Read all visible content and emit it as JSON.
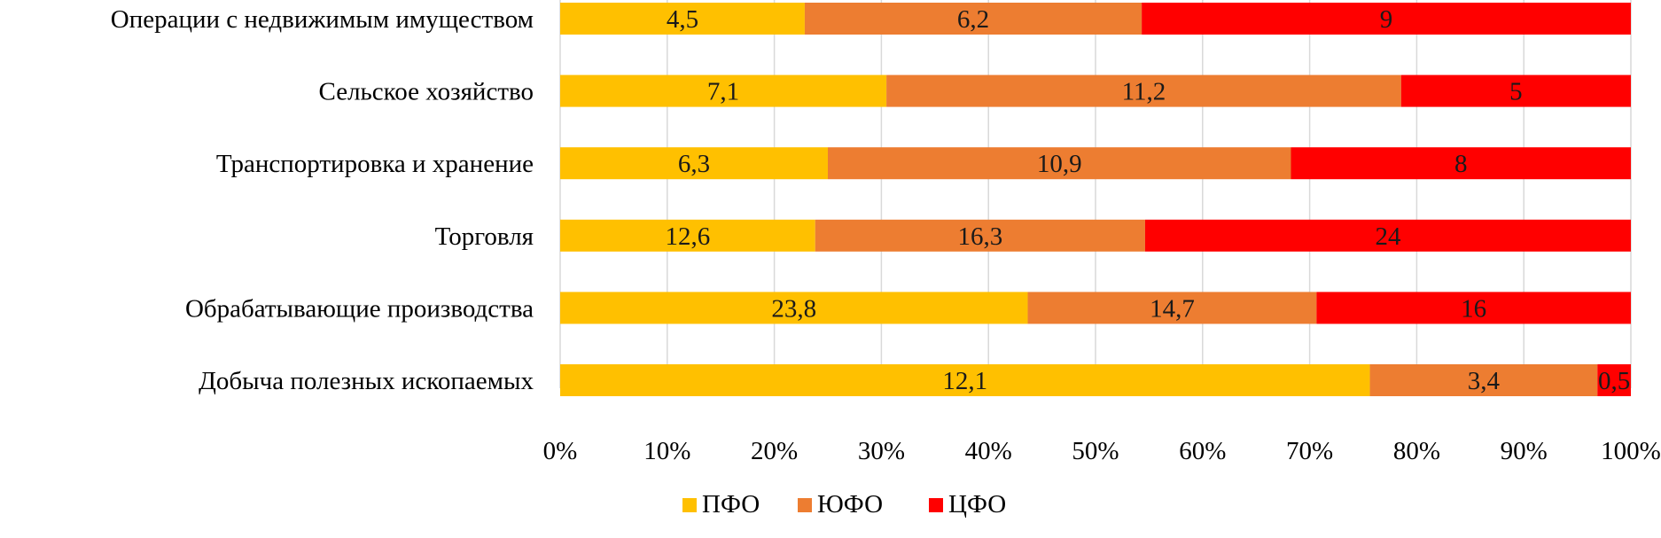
{
  "chart_data": {
    "type": "bar",
    "orientation": "horizontal",
    "stacked": "percent",
    "categories": [
      "Операции с недвижимым имуществом",
      "Сельское хозяйство",
      "Транспортировка и хранение",
      "Торговля",
      "Обрабатывающие производства",
      "Добыча полезных ископаемых"
    ],
    "series": [
      {
        "name": "ПФО",
        "color": "#FFC000",
        "values": [
          4.5,
          7.1,
          6.3,
          12.6,
          23.8,
          12.1
        ],
        "labels": [
          "4,5",
          "7,1",
          "6,3",
          "12,6",
          "23,8",
          "12,1"
        ]
      },
      {
        "name": "ЮФО",
        "color": "#ED7D31",
        "values": [
          6.2,
          11.2,
          10.9,
          16.3,
          14.7,
          3.4
        ],
        "labels": [
          "6,2",
          "11,2",
          "10,9",
          "16,3",
          "14,7",
          "3,4"
        ]
      },
      {
        "name": "ЦФО",
        "color": "#FF0000",
        "values": [
          9,
          5,
          8,
          24,
          16,
          0.5
        ],
        "labels": [
          "9",
          "5",
          "8",
          "24",
          "16",
          "0,5"
        ]
      }
    ],
    "x_ticks": [
      "0%",
      "10%",
      "20%",
      "30%",
      "40%",
      "50%",
      "60%",
      "70%",
      "80%",
      "90%",
      "100%"
    ],
    "xlim": [
      0,
      100
    ],
    "grid": true,
    "legend_position": "bottom",
    "title": "",
    "xlabel": "",
    "ylabel": ""
  }
}
